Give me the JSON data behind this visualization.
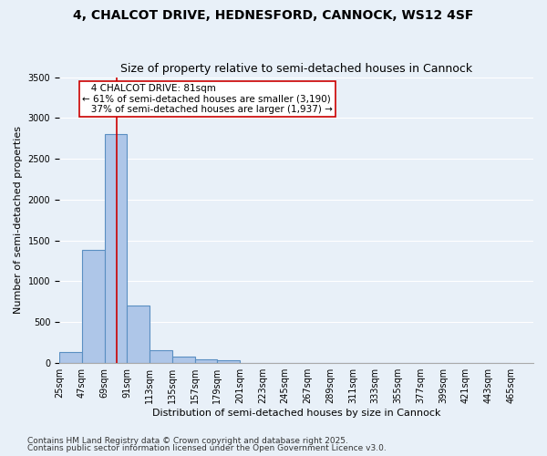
{
  "title": "4, CHALCOT DRIVE, HEDNESFORD, CANNOCK, WS12 4SF",
  "subtitle": "Size of property relative to semi-detached houses in Cannock",
  "xlabel": "Distribution of semi-detached houses by size in Cannock",
  "ylabel": "Number of semi-detached properties",
  "footnote1": "Contains HM Land Registry data © Crown copyright and database right 2025.",
  "footnote2": "Contains public sector information licensed under the Open Government Licence v3.0.",
  "bin_labels": [
    "25sqm",
    "47sqm",
    "69sqm",
    "91sqm",
    "113sqm",
    "135sqm",
    "157sqm",
    "179sqm",
    "201sqm",
    "223sqm",
    "245sqm",
    "267sqm",
    "289sqm",
    "311sqm",
    "333sqm",
    "355sqm",
    "377sqm",
    "399sqm",
    "421sqm",
    "443sqm",
    "465sqm"
  ],
  "bin_edges": [
    25,
    47,
    69,
    91,
    113,
    135,
    157,
    179,
    201,
    223,
    245,
    267,
    289,
    311,
    333,
    355,
    377,
    399,
    421,
    443,
    465
  ],
  "bar_heights": [
    130,
    1380,
    2800,
    700,
    150,
    80,
    40,
    30,
    0,
    0,
    0,
    0,
    0,
    0,
    0,
    0,
    0,
    0,
    0,
    0
  ],
  "bar_color": "#aec6e8",
  "bar_edge_color": "#5a8fc2",
  "bar_edge_width": 0.8,
  "red_line_x": 81,
  "red_line_color": "#cc0000",
  "annotation_line1": "   4 CHALCOT DRIVE: 81sqm",
  "annotation_line2": "← 61% of semi-detached houses are smaller (3,190)",
  "annotation_line3": "   37% of semi-detached houses are larger (1,937) →",
  "annotation_box_color": "white",
  "annotation_box_edge_color": "#cc0000",
  "ylim": [
    0,
    3500
  ],
  "background_color": "#e8f0f8",
  "grid_color": "white",
  "title_fontsize": 10,
  "subtitle_fontsize": 9,
  "axis_fontsize": 8,
  "tick_fontsize": 7,
  "annotation_fontsize": 7.5,
  "footnote_fontsize": 6.5
}
